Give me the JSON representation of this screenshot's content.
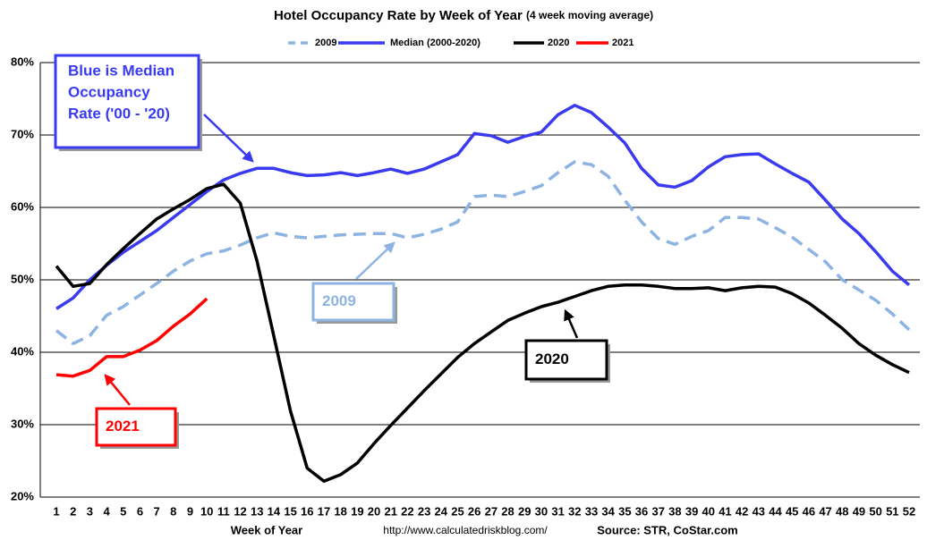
{
  "chart_data": {
    "type": "line",
    "title": "Hotel Occupancy Rate by  Week of Year",
    "subtitle": "(4 week moving average)",
    "x_label": "Week of Year",
    "url": "http://www.calculatedriskblog.com/",
    "source": "Source: STR, CoStar.com",
    "categories": [
      "1",
      "2",
      "3",
      "4",
      "5",
      "6",
      "7",
      "8",
      "9",
      "10",
      "11",
      "12",
      "13",
      "14",
      "15",
      "16",
      "17",
      "18",
      "19",
      "20",
      "21",
      "22",
      "23",
      "24",
      "25",
      "26",
      "27",
      "28",
      "29",
      "30",
      "31",
      "32",
      "33",
      "34",
      "35",
      "36",
      "37",
      "38",
      "39",
      "40",
      "41",
      "42",
      "43",
      "44",
      "45",
      "46",
      "47",
      "48",
      "49",
      "50",
      "51",
      "52"
    ],
    "ylim": [
      20,
      80
    ],
    "yticks": [
      {
        "value": 20,
        "label": "20%"
      },
      {
        "value": 30,
        "label": "30%"
      },
      {
        "value": 40,
        "label": "40%"
      },
      {
        "value": 50,
        "label": "50%"
      },
      {
        "value": 60,
        "label": "60%"
      },
      {
        "value": 70,
        "label": "70%"
      },
      {
        "value": 80,
        "label": "80%"
      }
    ],
    "grid": true,
    "legend": "top",
    "series": [
      {
        "name": "2009",
        "color": "#8db3e2",
        "style": "dashed",
        "values": [
          43.0,
          41.2,
          42.3,
          45.1,
          46.3,
          47.9,
          49.5,
          51.2,
          52.6,
          53.6,
          54.0,
          54.8,
          55.8,
          56.5,
          56.0,
          55.8,
          56.0,
          56.2,
          56.3,
          56.4,
          56.4,
          55.8,
          56.3,
          57.0,
          58.0,
          61.5,
          61.7,
          61.5,
          62.2,
          63.0,
          64.8,
          66.3,
          65.9,
          64.3,
          61.0,
          58.0,
          55.7,
          54.9,
          56.0,
          56.8,
          58.6,
          58.6,
          58.4,
          57.2,
          55.9,
          54.2,
          52.5,
          50.0,
          48.6,
          47.2,
          45.3,
          43.1
        ]
      },
      {
        "name": "Median (2000-2020)",
        "color": "#3a3af0",
        "style": "solid",
        "values": [
          46.0,
          47.5,
          50.0,
          52.0,
          53.8,
          55.3,
          56.8,
          58.6,
          60.4,
          62.2,
          63.8,
          64.7,
          65.4,
          65.4,
          64.8,
          64.4,
          64.5,
          64.8,
          64.4,
          64.8,
          65.3,
          64.7,
          65.3,
          66.3,
          67.3,
          70.2,
          69.9,
          69.0,
          69.8,
          70.4,
          72.8,
          74.1,
          73.1,
          71.1,
          68.9,
          65.4,
          63.1,
          62.8,
          63.7,
          65.6,
          67.0,
          67.3,
          67.4,
          66.0,
          64.7,
          63.5,
          61.0,
          58.4,
          56.4,
          53.9,
          51.2,
          49.3
        ]
      },
      {
        "name": "2020",
        "color": "#000000",
        "style": "solid",
        "values": [
          51.9,
          49.1,
          49.5,
          52.1,
          54.3,
          56.4,
          58.4,
          59.8,
          61.1,
          62.6,
          63.2,
          60.6,
          52.6,
          42.3,
          31.9,
          24.0,
          22.2,
          23.1,
          24.7,
          27.4,
          29.9,
          32.3,
          34.7,
          37.0,
          39.3,
          41.2,
          42.8,
          44.4,
          45.4,
          46.3,
          46.9,
          47.7,
          48.5,
          49.1,
          49.3,
          49.3,
          49.1,
          48.8,
          48.8,
          48.9,
          48.5,
          48.9,
          49.1,
          49.0,
          48.1,
          46.8,
          45.1,
          43.3,
          41.2,
          39.6,
          38.3,
          37.2
        ]
      },
      {
        "name": "2021",
        "color": "#ff0000",
        "style": "solid",
        "values": [
          36.9,
          36.7,
          37.5,
          39.4,
          39.4,
          40.3,
          41.6,
          43.6,
          45.3,
          47.4,
          null,
          null,
          null,
          null,
          null,
          null,
          null,
          null,
          null,
          null,
          null,
          null,
          null,
          null,
          null,
          null,
          null,
          null,
          null,
          null,
          null,
          null,
          null,
          null,
          null,
          null,
          null,
          null,
          null,
          null,
          null,
          null,
          null,
          null,
          null,
          null,
          null,
          null,
          null,
          null,
          null,
          null
        ]
      }
    ],
    "annotations": [
      {
        "text": [
          "Blue is Median",
          "Occupancy",
          "Rate ('00 - '20)"
        ],
        "color": "#3a3af0"
      },
      {
        "text": "2009",
        "color": "#8db3e2"
      },
      {
        "text": "2020",
        "color": "#000000"
      },
      {
        "text": "2021",
        "color": "#ff0000"
      }
    ]
  }
}
